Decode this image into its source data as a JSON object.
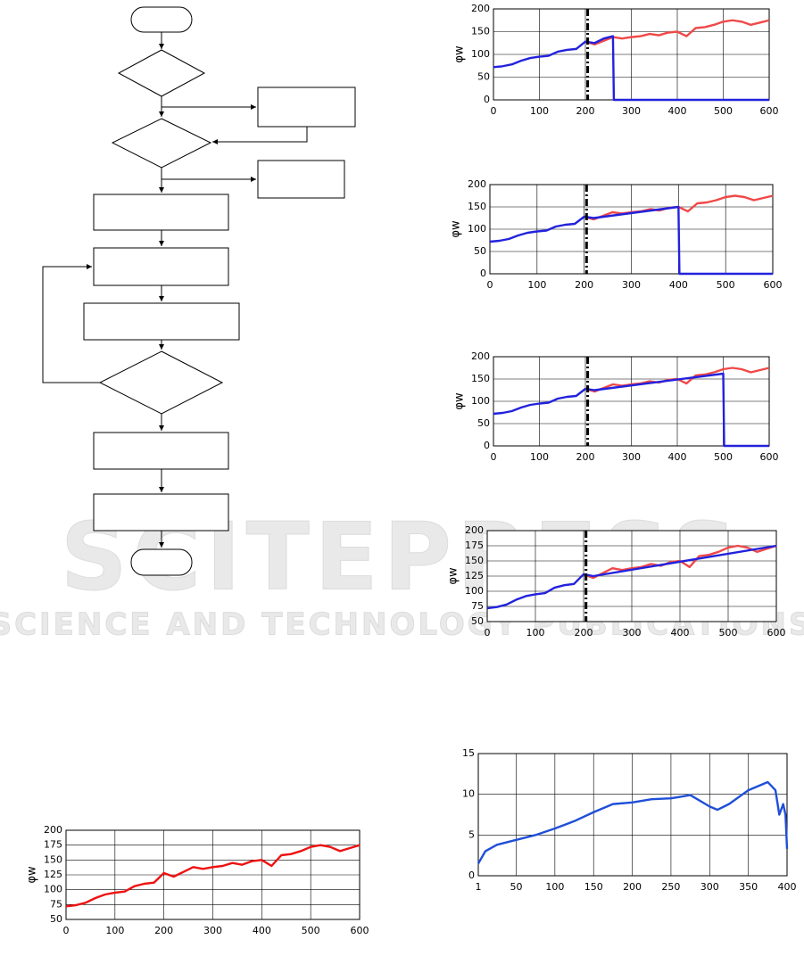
{
  "watermark": {
    "title": "SCITEPRESS",
    "subtitle": "SCIENCE AND TECHNOLOGY PUBLICATIONS"
  },
  "chart_data": [
    {
      "type": "line",
      "ylabel": "φw",
      "xlim": [
        0,
        600
      ],
      "ylim": [
        0,
        200
      ],
      "xticks": [
        0,
        100,
        200,
        300,
        400,
        500,
        600
      ],
      "yticks": [
        0,
        50,
        100,
        150,
        200
      ],
      "grid": true,
      "marker_x": 205,
      "series": [
        {
          "color": "#f04848",
          "x": [
            200,
            220,
            240,
            260,
            280,
            300,
            320,
            340,
            360,
            380,
            400,
            420,
            440,
            460,
            480,
            500,
            520,
            540,
            560,
            580,
            600
          ],
          "values": [
            128,
            122,
            130,
            138,
            135,
            138,
            140,
            145,
            142,
            148,
            150,
            140,
            158,
            160,
            165,
            172,
            175,
            172,
            165,
            170,
            175
          ]
        },
        {
          "color": "#2222dd",
          "x": [
            0,
            20,
            40,
            60,
            80,
            100,
            120,
            140,
            160,
            180,
            200,
            220,
            240,
            260,
            262,
            600
          ],
          "values": [
            72,
            74,
            78,
            86,
            92,
            95,
            97,
            106,
            110,
            112,
            128,
            125,
            135,
            140,
            0,
            0
          ]
        }
      ]
    },
    {
      "type": "line",
      "ylabel": "φw",
      "xlim": [
        0,
        600
      ],
      "ylim": [
        0,
        200
      ],
      "xticks": [
        0,
        100,
        200,
        300,
        400,
        500,
        600
      ],
      "yticks": [
        0,
        50,
        100,
        150,
        200
      ],
      "grid": true,
      "marker_x": 205,
      "series": [
        {
          "color": "#f04848",
          "x": [
            200,
            220,
            240,
            260,
            280,
            300,
            320,
            340,
            360,
            380,
            400,
            420,
            440,
            460,
            480,
            500,
            520,
            540,
            560,
            580,
            600
          ],
          "values": [
            128,
            122,
            130,
            138,
            135,
            138,
            140,
            145,
            142,
            148,
            150,
            140,
            158,
            160,
            165,
            172,
            175,
            172,
            165,
            170,
            175
          ]
        },
        {
          "color": "#2222dd",
          "x": [
            0,
            20,
            40,
            60,
            80,
            100,
            120,
            140,
            160,
            180,
            200,
            220,
            400,
            402,
            600
          ],
          "values": [
            72,
            74,
            78,
            86,
            92,
            95,
            97,
            106,
            110,
            112,
            128,
            125,
            150,
            0,
            0
          ]
        }
      ]
    },
    {
      "type": "line",
      "ylabel": "φw",
      "xlim": [
        0,
        600
      ],
      "ylim": [
        0,
        200
      ],
      "xticks": [
        0,
        100,
        200,
        300,
        400,
        500,
        600
      ],
      "yticks": [
        0,
        50,
        100,
        150,
        200
      ],
      "grid": true,
      "marker_x": 205,
      "series": [
        {
          "color": "#f04848",
          "x": [
            200,
            220,
            240,
            260,
            280,
            300,
            320,
            340,
            360,
            380,
            400,
            420,
            440,
            460,
            480,
            500,
            520,
            540,
            560,
            580,
            600
          ],
          "values": [
            128,
            122,
            130,
            138,
            135,
            138,
            140,
            145,
            142,
            148,
            150,
            140,
            158,
            160,
            165,
            172,
            175,
            172,
            165,
            170,
            175
          ]
        },
        {
          "color": "#2222dd",
          "x": [
            0,
            20,
            40,
            60,
            80,
            100,
            120,
            140,
            160,
            180,
            200,
            220,
            500,
            502,
            600
          ],
          "values": [
            72,
            74,
            78,
            86,
            92,
            95,
            97,
            106,
            110,
            112,
            128,
            125,
            162,
            0,
            0
          ]
        }
      ]
    },
    {
      "type": "line",
      "ylabel": "φw",
      "xlim": [
        0,
        600
      ],
      "ylim": [
        50,
        200
      ],
      "xticks": [
        0,
        100,
        200,
        300,
        400,
        500,
        600
      ],
      "yticks": [
        50,
        75,
        100,
        125,
        150,
        175,
        200
      ],
      "grid": true,
      "marker_x": 205,
      "series": [
        {
          "color": "#f04848",
          "x": [
            200,
            220,
            240,
            260,
            280,
            300,
            320,
            340,
            360,
            380,
            400,
            420,
            440,
            460,
            480,
            500,
            520,
            540,
            560,
            580,
            600
          ],
          "values": [
            128,
            122,
            130,
            138,
            135,
            138,
            140,
            145,
            142,
            148,
            150,
            140,
            158,
            160,
            165,
            172,
            175,
            172,
            165,
            170,
            175
          ]
        },
        {
          "color": "#2222dd",
          "x": [
            0,
            20,
            40,
            60,
            80,
            100,
            120,
            140,
            160,
            180,
            200,
            220,
            600
          ],
          "values": [
            72,
            74,
            78,
            86,
            92,
            95,
            97,
            106,
            110,
            112,
            128,
            125,
            175
          ]
        }
      ]
    },
    {
      "type": "line",
      "ylabel": "φw",
      "xlim": [
        0,
        600
      ],
      "ylim": [
        50,
        200
      ],
      "xticks": [
        0,
        100,
        200,
        300,
        400,
        500,
        600
      ],
      "yticks": [
        50,
        75,
        100,
        125,
        150,
        175,
        200
      ],
      "grid": true,
      "series": [
        {
          "color": "#ee1111",
          "x": [
            0,
            20,
            40,
            60,
            80,
            100,
            120,
            140,
            160,
            180,
            200,
            220,
            240,
            260,
            280,
            300,
            320,
            340,
            360,
            380,
            400,
            420,
            440,
            460,
            480,
            500,
            520,
            540,
            560,
            580,
            600
          ],
          "values": [
            72,
            74,
            78,
            86,
            92,
            95,
            97,
            106,
            110,
            112,
            128,
            122,
            130,
            138,
            135,
            138,
            140,
            145,
            142,
            148,
            150,
            140,
            158,
            160,
            165,
            172,
            175,
            172,
            165,
            170,
            175
          ]
        }
      ]
    },
    {
      "type": "line",
      "xlim": [
        1,
        400
      ],
      "ylim": [
        0,
        15
      ],
      "xticks": [
        1,
        50,
        100,
        150,
        200,
        250,
        300,
        350,
        400
      ],
      "yticks": [
        0,
        5,
        10,
        15
      ],
      "grid": true,
      "series": [
        {
          "color": "#1f4fd8",
          "x": [
            1,
            10,
            25,
            50,
            75,
            100,
            125,
            150,
            175,
            200,
            225,
            250,
            275,
            300,
            310,
            325,
            350,
            375,
            385,
            390,
            395,
            398,
            400
          ],
          "values": [
            1.5,
            3,
            3.8,
            4.4,
            5,
            5.8,
            6.7,
            7.8,
            8.8,
            9,
            9.4,
            9.5,
            9.9,
            8.5,
            8.1,
            8.8,
            10.5,
            11.5,
            10.5,
            7.5,
            8.8,
            7.5,
            3.3
          ]
        }
      ]
    }
  ]
}
